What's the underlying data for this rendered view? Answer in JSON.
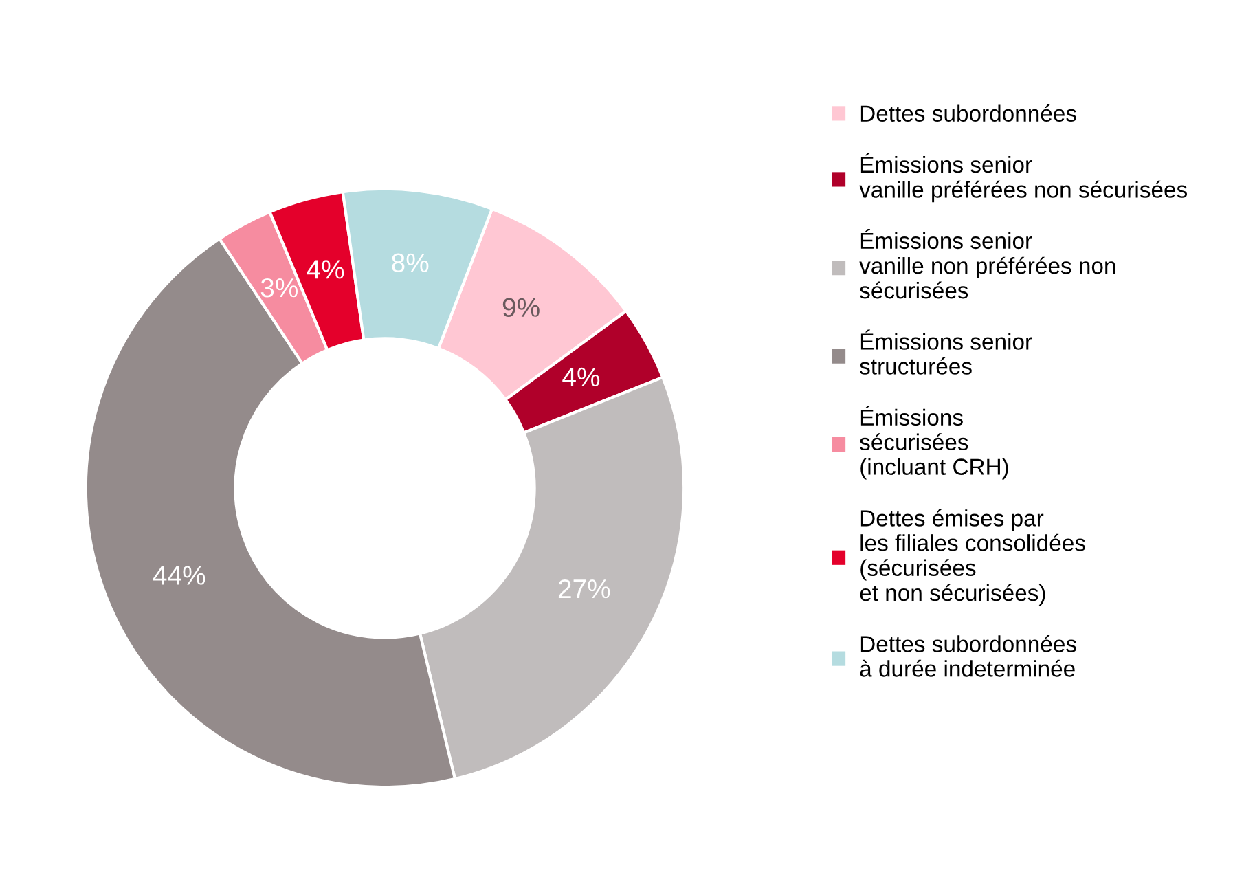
{
  "chart_data": {
    "type": "donut",
    "categories": [
      "Dettes subordonnées",
      "Émissions senior\nvanille préférées non sécurisées",
      "Émissions senior\nvanille non préférées non\nsécurisées",
      "Émissions senior\nstructurées",
      "Émissions\nsécurisées\n(incluant CRH)",
      "Dettes émises par\nles filiales consolidées\n(sécurisées\net non sécurisées)",
      "Dettes subordonnées\nà durée indeterminée"
    ],
    "values": [
      9,
      4,
      27,
      44,
      3,
      4,
      8
    ],
    "colors": [
      "#ffc7d3",
      "#b0002a",
      "#c0bcbc",
      "#948b8b",
      "#f68ca0",
      "#e4002b",
      "#b5dce0"
    ],
    "value_labels": [
      "9%",
      "4%",
      "27%",
      "44%",
      "3%",
      "4%",
      "8%"
    ],
    "legend": "right"
  }
}
